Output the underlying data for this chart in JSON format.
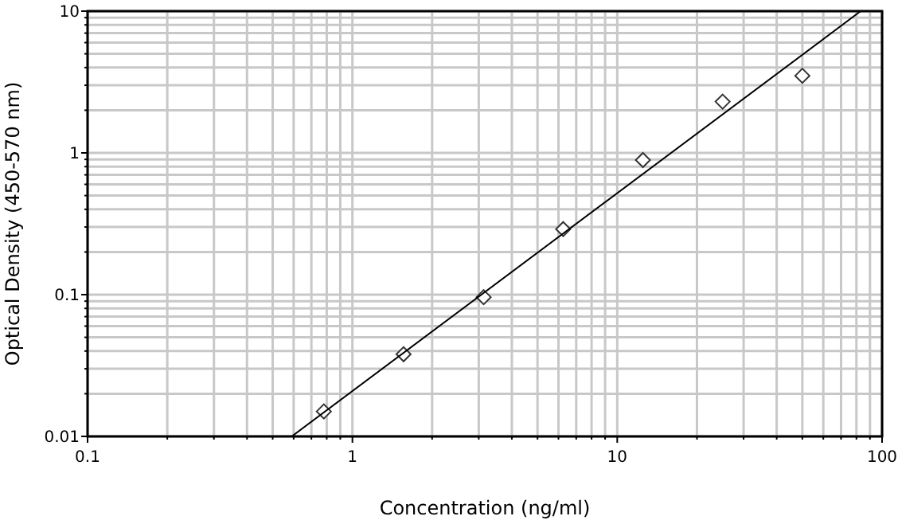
{
  "chart_data": {
    "type": "scatter",
    "xlabel": "Concentration (ng/ml)",
    "ylabel": "Optical Density (450-570 nm)",
    "log": "xy",
    "grid": true,
    "marker": "diamond",
    "xlim": [
      0.1,
      100
    ],
    "ylim": [
      0.01,
      10
    ],
    "xticks": [
      0.1,
      {
        "value": 0.2,
        "label": null
      },
      {
        "value": 0.3,
        "label": null
      },
      {
        "value": 0.4,
        "label": null
      },
      {
        "value": 0.5,
        "label": null
      },
      {
        "value": 0.6,
        "label": null
      },
      {
        "value": 0.7,
        "label": null
      },
      {
        "value": 0.8,
        "label": null
      },
      {
        "value": 0.9,
        "label": null
      },
      1,
      {
        "value": 2,
        "label": null
      },
      {
        "value": 3,
        "label": null
      },
      {
        "value": 4,
        "label": null
      },
      {
        "value": 5,
        "label": null
      },
      {
        "value": 6,
        "label": null
      },
      {
        "value": 7,
        "label": null
      },
      {
        "value": 8,
        "label": null
      },
      {
        "value": 9,
        "label": null
      },
      10,
      {
        "value": 20,
        "label": null
      },
      {
        "value": 30,
        "label": null
      },
      {
        "value": 40,
        "label": null
      },
      {
        "value": 50,
        "label": null
      },
      {
        "value": 60,
        "label": null
      },
      {
        "value": 70,
        "label": null
      },
      {
        "value": 80,
        "label": null
      },
      {
        "value": 90,
        "label": null
      },
      100
    ],
    "yticks": [
      0.01,
      {
        "value": 0.02,
        "label": null
      },
      {
        "value": 0.03,
        "label": null
      },
      {
        "value": 0.04,
        "label": null
      },
      {
        "value": 0.05,
        "label": null
      },
      {
        "value": 0.06,
        "label": null
      },
      {
        "value": 0.07,
        "label": null
      },
      {
        "value": 0.08,
        "label": null
      },
      {
        "value": 0.09,
        "label": null
      },
      0.1,
      {
        "value": 0.2,
        "label": null
      },
      {
        "value": 0.3,
        "label": null
      },
      {
        "value": 0.4,
        "label": null
      },
      {
        "value": 0.5,
        "label": null
      },
      {
        "value": 0.6,
        "label": null
      },
      {
        "value": 0.7,
        "label": null
      },
      {
        "value": 0.8,
        "label": null
      },
      {
        "value": 0.9,
        "label": null
      },
      1,
      {
        "value": 2,
        "label": null
      },
      {
        "value": 3,
        "label": null
      },
      {
        "value": 4,
        "label": null
      },
      {
        "value": 5,
        "label": null
      },
      {
        "value": 6,
        "label": null
      },
      {
        "value": 7,
        "label": null
      },
      {
        "value": 8,
        "label": null
      },
      {
        "value": 9,
        "label": null
      },
      10
    ],
    "series": [
      {
        "color": "#333333",
        "x": [
          0.78,
          1.56,
          3.13,
          6.25,
          12.5,
          25,
          50
        ],
        "values": [
          0.015,
          0.038,
          0.096,
          0.29,
          0.89,
          2.3,
          3.5
        ]
      },
      {
        "type": "line",
        "color": "#000000",
        "marker": "none",
        "x": [
          0.59,
          83
        ],
        "values": [
          0.01,
          10
        ]
      }
    ]
  }
}
